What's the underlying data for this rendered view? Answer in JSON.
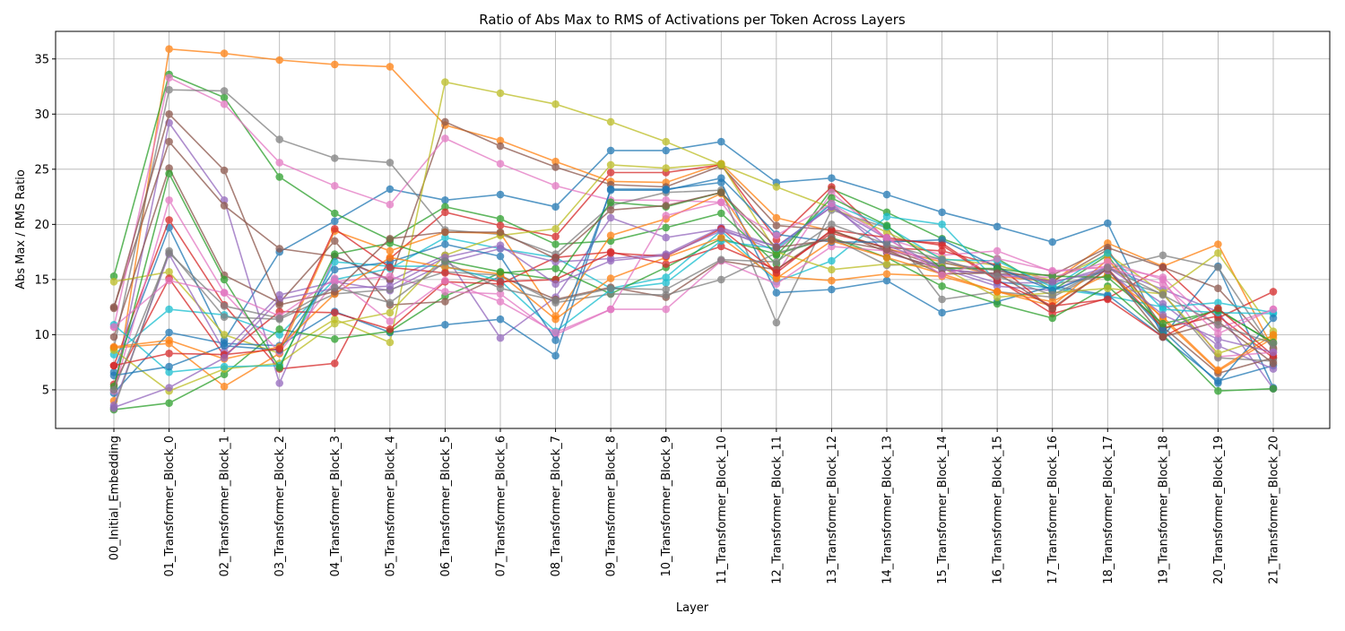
{
  "chart_data": {
    "type": "line",
    "title": "Ratio of Abs Max to RMS of Activations per Token Across Layers",
    "xlabel": "Layer",
    "ylabel": "Abs Max / RMS Ratio",
    "ylim": [
      1.5,
      37.5
    ],
    "yticks": [
      5,
      10,
      15,
      20,
      25,
      30,
      35
    ],
    "grid": true,
    "legend": "none",
    "marker": "circle",
    "categories": [
      "00_Initial_Embedding",
      "01_Transformer_Block_0",
      "02_Transformer_Block_1",
      "03_Transformer_Block_2",
      "04_Transformer_Block_3",
      "05_Transformer_Block_4",
      "06_Transformer_Block_5",
      "07_Transformer_Block_6",
      "08_Transformer_Block_7",
      "09_Transformer_Block_8",
      "10_Transformer_Block_9",
      "11_Transformer_Block_10",
      "12_Transformer_Block_11",
      "13_Transformer_Block_12",
      "14_Transformer_Block_13",
      "15_Transformer_Block_14",
      "16_Transformer_Block_15",
      "17_Transformer_Block_16",
      "18_Transformer_Block_17",
      "19_Transformer_Block_18",
      "20_Transformer_Block_19",
      "21_Transformer_Block_20"
    ],
    "series": [
      {
        "color": "#1f77b4",
        "values": [
          6.6,
          19.7,
          9.5,
          17.5,
          20.3,
          23.2,
          22.2,
          22.7,
          21.6,
          26.7,
          26.7,
          27.5,
          23.8,
          24.2,
          22.7,
          21.1,
          19.8,
          18.4,
          20.1,
          9.8,
          16.2,
          5.2
        ]
      },
      {
        "color": "#ff7f0e",
        "values": [
          4.0,
          35.9,
          35.5,
          34.9,
          34.5,
          34.3,
          29.0,
          27.6,
          25.7,
          23.9,
          23.8,
          25.5,
          20.6,
          19.4,
          17.8,
          16.6,
          15.3,
          14.8,
          18.3,
          16.2,
          18.2,
          8.7
        ]
      },
      {
        "color": "#2ca02c",
        "values": [
          15.3,
          33.6,
          31.5,
          24.3,
          21.0,
          18.6,
          21.6,
          20.5,
          18.2,
          18.5,
          19.7,
          21.0,
          16.4,
          23.2,
          21.1,
          18.7,
          16.9,
          14.0,
          17.2,
          10.5,
          12.3,
          9.2
        ]
      },
      {
        "color": "#d62728",
        "values": [
          7.2,
          20.4,
          12.7,
          6.9,
          7.4,
          16.9,
          21.1,
          19.9,
          18.9,
          24.7,
          24.7,
          25.4,
          18.6,
          23.4,
          18.6,
          18.3,
          15.0,
          11.9,
          13.3,
          16.1,
          11.5,
          13.9
        ]
      },
      {
        "color": "#9467bd",
        "values": [
          5.0,
          29.2,
          22.2,
          5.6,
          17.1,
          14.9,
          17.2,
          9.7,
          13.4,
          20.6,
          18.8,
          19.6,
          17.6,
          21.9,
          17.4,
          16.0,
          14.4,
          14.0,
          16.1,
          14.1,
          12.1,
          5.1
        ]
      },
      {
        "color": "#8c564b",
        "values": [
          12.5,
          27.5,
          21.7,
          17.8,
          17.1,
          15.0,
          29.3,
          27.1,
          25.2,
          23.6,
          23.4,
          25.3,
          19.9,
          19.5,
          17.5,
          15.9,
          15.5,
          15.4,
          17.9,
          16.1,
          14.2,
          8.8
        ]
      },
      {
        "color": "#e377c2",
        "values": [
          10.7,
          33.3,
          30.9,
          25.6,
          23.5,
          21.8,
          27.8,
          25.5,
          23.5,
          22.2,
          22.2,
          22.0,
          15.5,
          22.9,
          18.7,
          17.2,
          17.6,
          15.7,
          16.2,
          15.2,
          10.6,
          12.3
        ]
      },
      {
        "color": "#7f7f7f",
        "values": [
          8.8,
          32.2,
          32.1,
          27.7,
          26.0,
          25.6,
          19.5,
          19.1,
          17.3,
          21.7,
          22.9,
          23.1,
          11.1,
          21.3,
          19.7,
          13.2,
          13.9,
          13.4,
          16.0,
          17.2,
          16.1,
          8.6
        ]
      },
      {
        "color": "#bcbd22",
        "values": [
          14.8,
          15.7,
          10.0,
          8.3,
          11.4,
          9.3,
          32.9,
          31.9,
          30.9,
          29.3,
          27.5,
          25.4,
          23.4,
          21.5,
          19.3,
          16.9,
          16.3,
          14.9,
          17.3,
          13.8,
          17.4,
          10.3
        ]
      },
      {
        "color": "#17becf",
        "values": [
          8.2,
          12.3,
          11.8,
          10.0,
          15.0,
          16.0,
          18.8,
          17.8,
          17.0,
          14.2,
          15.2,
          19.4,
          14.8,
          16.7,
          20.7,
          20.0,
          14.8,
          14.2,
          13.5,
          12.5,
          12.9,
          12.0
        ]
      },
      {
        "color": "#1f77b4",
        "values": [
          4.7,
          10.2,
          9.2,
          9.0,
          12.1,
          10.2,
          10.9,
          11.4,
          8.1,
          23.2,
          23.2,
          23.8,
          13.8,
          14.1,
          14.9,
          12.0,
          13.0,
          14.4,
          13.6,
          9.8,
          5.8,
          7.2
        ]
      },
      {
        "color": "#ff7f0e",
        "values": [
          8.8,
          9.2,
          5.3,
          8.3,
          19.4,
          17.6,
          19.3,
          19.2,
          11.7,
          19.0,
          20.5,
          22.8,
          15.3,
          14.9,
          15.5,
          15.3,
          13.9,
          12.6,
          16.8,
          11.4,
          6.7,
          9.7
        ]
      },
      {
        "color": "#2ca02c",
        "values": [
          3.2,
          3.8,
          6.4,
          10.5,
          9.6,
          10.3,
          13.5,
          15.6,
          16.0,
          13.7,
          16.1,
          18.7,
          17.3,
          18.8,
          17.0,
          14.4,
          12.8,
          11.5,
          14.4,
          10.0,
          4.9,
          5.1
        ]
      },
      {
        "color": "#d62728",
        "values": [
          5.5,
          15.1,
          8.1,
          12.1,
          12.0,
          10.5,
          14.8,
          14.6,
          17.0,
          17.5,
          16.4,
          18.0,
          15.9,
          19.2,
          17.9,
          17.6,
          16.3,
          12.3,
          16.0,
          10.6,
          11.7,
          7.9
        ]
      },
      {
        "color": "#9467bd",
        "values": [
          3.6,
          17.3,
          8.5,
          13.6,
          14.8,
          14.0,
          16.5,
          17.8,
          16.6,
          16.9,
          17.3,
          19.7,
          18.0,
          21.6,
          18.1,
          16.2,
          14.7,
          14.7,
          16.1,
          12.8,
          9.0,
          6.9
        ]
      },
      {
        "color": "#8c564b",
        "values": [
          9.8,
          25.1,
          15.4,
          12.9,
          18.5,
          12.7,
          13.0,
          15.3,
          13.2,
          14.3,
          13.4,
          16.7,
          15.9,
          19.4,
          17.8,
          16.1,
          15.9,
          14.8,
          17.7,
          10.7,
          6.5,
          7.9
        ]
      },
      {
        "color": "#e377c2",
        "values": [
          4.9,
          22.2,
          13.8,
          8.4,
          14.8,
          15.3,
          13.9,
          13.7,
          10.0,
          12.3,
          12.3,
          16.7,
          14.6,
          18.0,
          17.6,
          16.8,
          15.3,
          15.2,
          16.6,
          15.0,
          8.0,
          8.4
        ]
      },
      {
        "color": "#7f7f7f",
        "values": [
          3.3,
          17.6,
          11.6,
          11.4,
          13.7,
          14.1,
          15.7,
          15.4,
          12.9,
          13.7,
          13.6,
          15.0,
          17.4,
          18.8,
          16.3,
          16.5,
          15.8,
          14.6,
          15.3,
          13.7,
          7.9,
          7.6
        ]
      },
      {
        "color": "#bcbd22",
        "values": [
          8.6,
          4.9,
          6.9,
          7.4,
          11.0,
          12.0,
          17.2,
          19.0,
          19.6,
          25.4,
          25.1,
          25.5,
          17.5,
          15.9,
          16.4,
          16.1,
          13.4,
          13.8,
          14.2,
          13.7,
          8.3,
          9.9
        ]
      },
      {
        "color": "#17becf",
        "values": [
          10.9,
          6.6,
          7.1,
          7.2,
          16.6,
          16.2,
          16.2,
          14.9,
          10.3,
          14.1,
          14.7,
          18.5,
          17.8,
          21.9,
          19.8,
          16.8,
          16.7,
          14.3,
          17.4,
          12.3,
          12.0,
          11.9
        ]
      },
      {
        "color": "#1f77b4",
        "values": [
          6.3,
          7.1,
          9.0,
          8.6,
          15.9,
          16.6,
          18.2,
          17.1,
          9.5,
          23.1,
          23.1,
          24.2,
          19.1,
          18.4,
          18.4,
          18.6,
          16.1,
          14.0,
          15.9,
          10.4,
          5.6,
          11.5
        ]
      },
      {
        "color": "#ff7f0e",
        "values": [
          8.9,
          9.5,
          7.8,
          8.9,
          13.7,
          17.0,
          16.1,
          15.5,
          11.4,
          15.1,
          17.0,
          18.8,
          15.1,
          18.5,
          17.0,
          15.5,
          13.9,
          13.0,
          15.5,
          11.6,
          6.8,
          10.0
        ]
      },
      {
        "color": "#2ca02c",
        "values": [
          5.3,
          24.6,
          15.0,
          7.0,
          17.3,
          18.3,
          16.7,
          15.7,
          15.0,
          22.0,
          21.6,
          22.9,
          17.2,
          22.4,
          19.9,
          16.0,
          16.0,
          15.3,
          15.2,
          11.0,
          12.2,
          9.3
        ]
      },
      {
        "color": "#d62728",
        "values": [
          7.2,
          8.3,
          8.2,
          8.7,
          19.6,
          16.1,
          15.6,
          14.8,
          15.0,
          17.4,
          17.1,
          19.6,
          15.6,
          19.5,
          18.8,
          18.1,
          14.9,
          12.6,
          13.2,
          9.8,
          12.4,
          8.1
        ]
      },
      {
        "color": "#9467bd",
        "values": [
          3.4,
          5.2,
          7.9,
          13.2,
          14.2,
          14.4,
          17.0,
          18.1,
          14.6,
          16.7,
          17.2,
          19.4,
          18.0,
          21.6,
          18.7,
          15.9,
          15.5,
          14.8,
          15.8,
          11.8,
          9.6,
          8.4
        ]
      },
      {
        "color": "#8c564b",
        "values": [
          12.4,
          30.0,
          24.9,
          12.7,
          13.9,
          18.7,
          19.3,
          19.3,
          16.9,
          21.3,
          21.7,
          22.9,
          17.9,
          18.6,
          17.7,
          15.5,
          15.6,
          12.4,
          16.0,
          9.8,
          11.2,
          7.4
        ]
      },
      {
        "color": "#e377c2",
        "values": [
          10.7,
          14.9,
          13.8,
          11.7,
          15.1,
          11.2,
          14.9,
          13.0,
          10.2,
          12.3,
          20.8,
          22.0,
          19.0,
          21.9,
          18.8,
          15.4,
          16.9,
          15.8,
          16.1,
          14.6,
          10.1,
          12.3
        ]
      },
      {
        "color": "#7f7f7f",
        "values": [
          5.0,
          17.4,
          12.6,
          11.5,
          14.3,
          12.9,
          16.6,
          14.2,
          13.1,
          14.2,
          14.1,
          16.8,
          16.6,
          20.0,
          18.2,
          16.8,
          15.3,
          13.6,
          16.1,
          13.6,
          10.9,
          9.2
        ]
      }
    ]
  }
}
